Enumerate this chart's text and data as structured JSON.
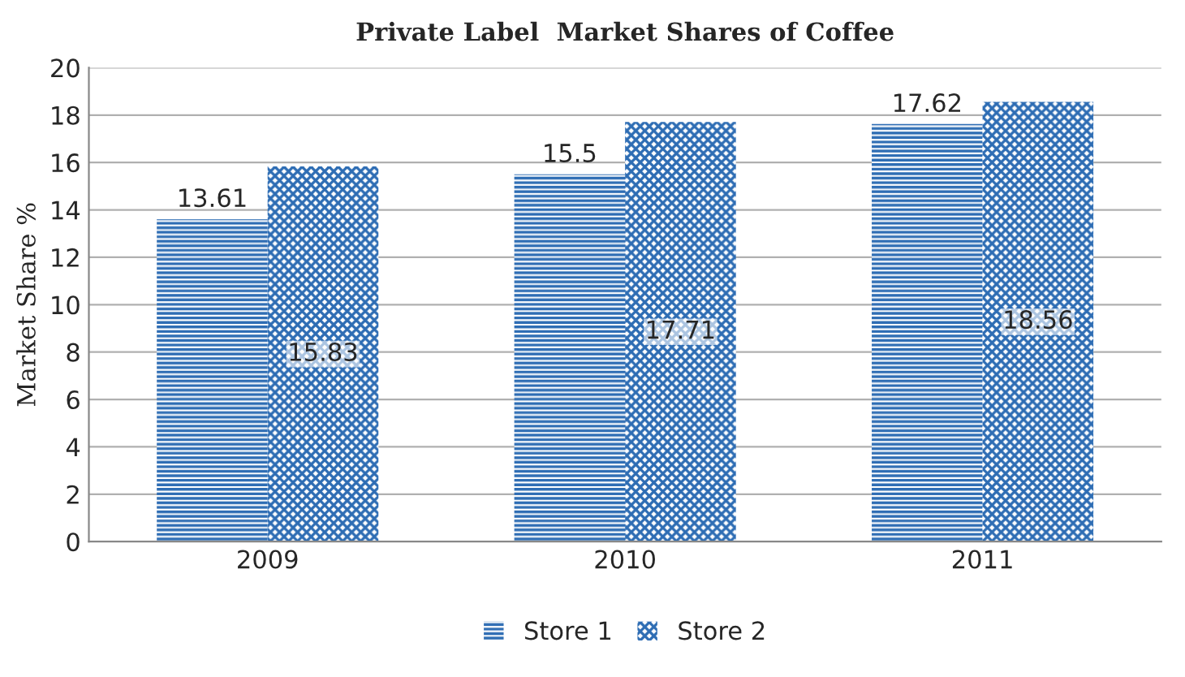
{
  "chart_data": {
    "type": "bar",
    "title": "Private Label  Market Shares of Coffee",
    "ylabel": "Market Share %",
    "categories": [
      "2009",
      "2010",
      "2011"
    ],
    "series": [
      {
        "name": "Store 1",
        "color": "#2e6db4",
        "values": [
          13.61,
          15.5,
          17.62
        ]
      },
      {
        "name": "Store 2",
        "color": "#2e6db4",
        "values": [
          15.83,
          17.71,
          18.56
        ]
      }
    ],
    "ylim": [
      0,
      20
    ],
    "yticks": [
      0,
      2,
      4,
      6,
      8,
      10,
      12,
      14,
      16,
      18,
      20
    ],
    "grid": "y",
    "legend": "bottom",
    "data_labels": true
  }
}
